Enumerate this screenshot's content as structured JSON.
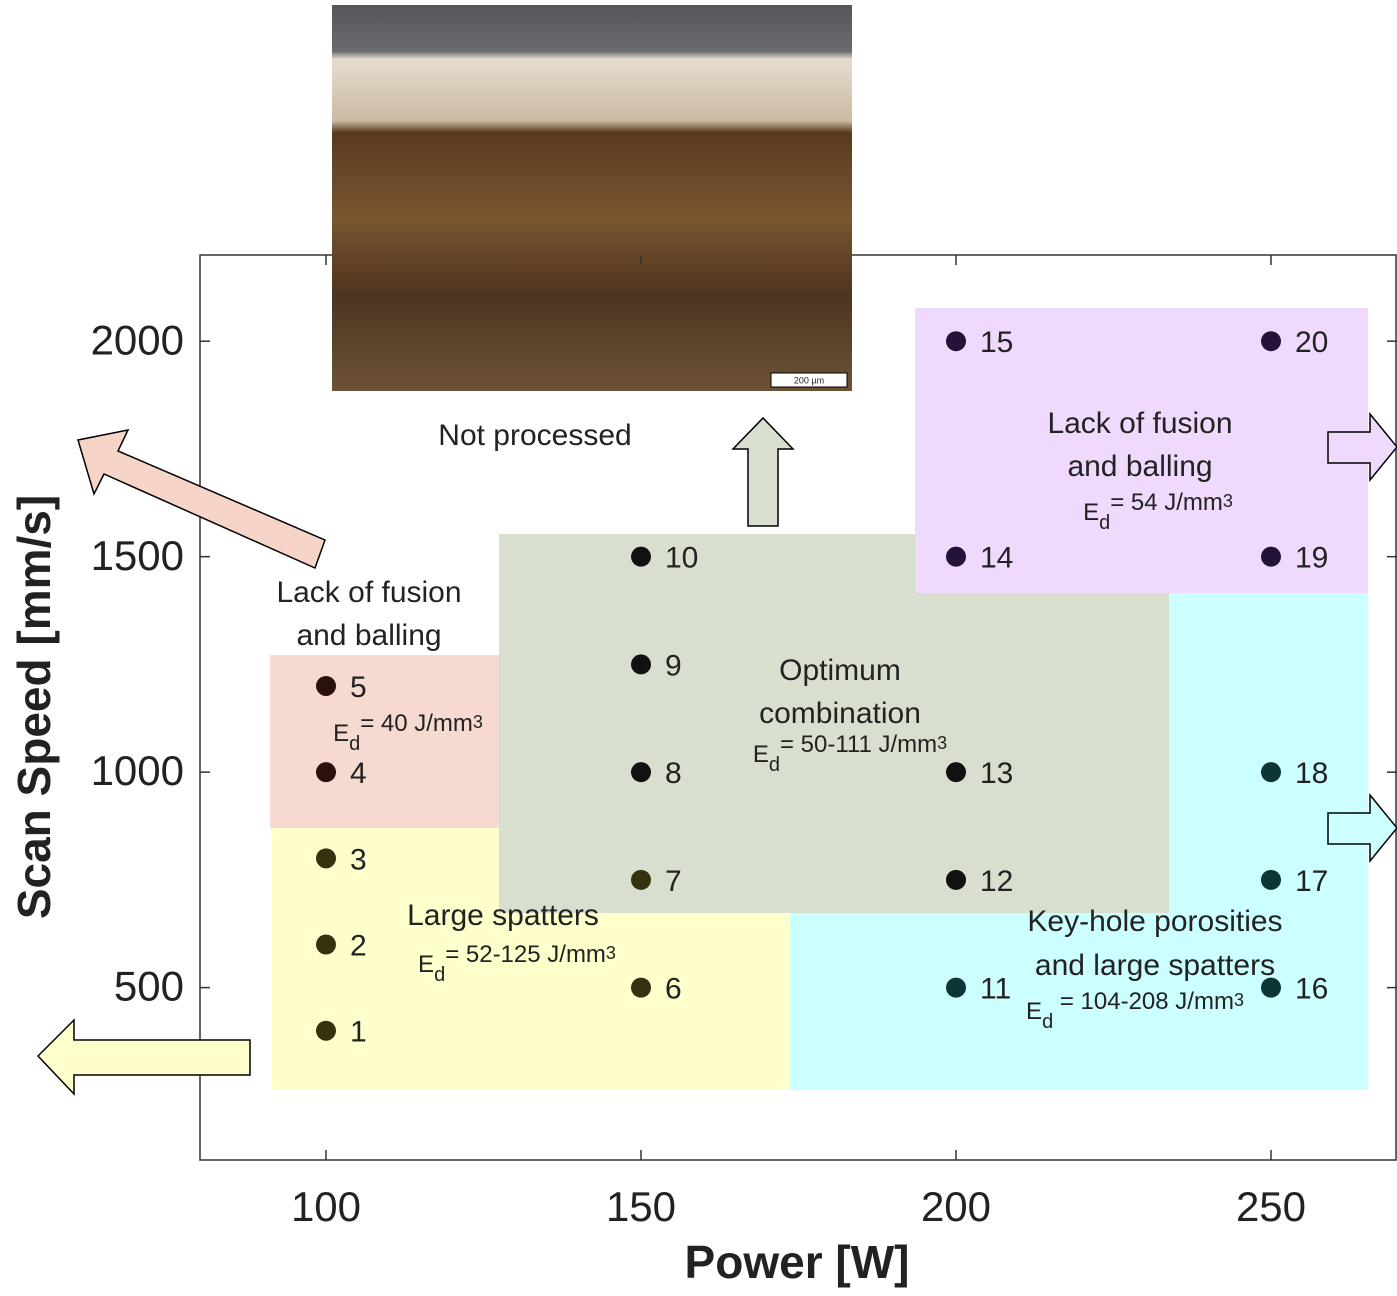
{
  "chart_data": {
    "type": "scatter",
    "x_label": "Power [W]",
    "y_label": "Scan Speed [mm/s]",
    "xlim": [
      80,
      270
    ],
    "ylim": [
      100,
      2200
    ],
    "xticks": [
      100,
      150,
      200,
      250
    ],
    "yticks": [
      500,
      1000,
      1500,
      2000
    ],
    "points": {
      "labels": [
        "1",
        "2",
        "3",
        "4",
        "5",
        "6",
        "7",
        "8",
        "9",
        "10",
        "11",
        "12",
        "13",
        "14",
        "15",
        "16",
        "17",
        "18",
        "19",
        "20"
      ],
      "x": [
        100,
        100,
        100,
        100,
        100,
        150,
        150,
        150,
        150,
        150,
        200,
        200,
        200,
        200,
        200,
        250,
        250,
        250,
        250,
        250
      ],
      "y": [
        400,
        600,
        800,
        1000,
        1200,
        500,
        750,
        1000,
        1250,
        1500,
        500,
        750,
        1000,
        1500,
        2000,
        500,
        750,
        1000,
        1500,
        2000
      ],
      "colors": [
        "#35330f",
        "#35330f",
        "#35330f",
        "#2a120a",
        "#2a120a",
        "#35330f",
        "#35330f",
        "#111111",
        "#111111",
        "#111111",
        "#0d3535",
        "#111111",
        "#111111",
        "#24123a",
        "#24123a",
        "#0d3535",
        "#0d3535",
        "#0d3535",
        "#24123a",
        "#24123a"
      ]
    },
    "regions": [
      {
        "lines": [
          "Lack of fusion",
          "and balling"
        ],
        "energy": [
          "E",
          "d",
          "= 40 J/mm",
          "3"
        ]
      },
      {
        "lines": [
          "Large spatters"
        ],
        "energy": [
          "E",
          "d",
          "= 52-125 J/mm",
          "3"
        ]
      },
      {
        "lines": [
          "Optimum",
          "combination"
        ],
        "energy": [
          "E",
          "d",
          "= 50-111 J/mm",
          "3"
        ]
      },
      {
        "lines": [
          "Key-hole porosities",
          "and large spatters"
        ],
        "energy": [
          "E",
          "d",
          " = 104-208 J/mm",
          "3"
        ]
      },
      {
        "lines": [
          "Lack of fusion",
          "and balling"
        ],
        "energy": [
          "E",
          "d",
          "= 54 J/mm",
          "3"
        ]
      }
    ],
    "annotation": "Not processed",
    "scale_bar": "200 µm"
  }
}
